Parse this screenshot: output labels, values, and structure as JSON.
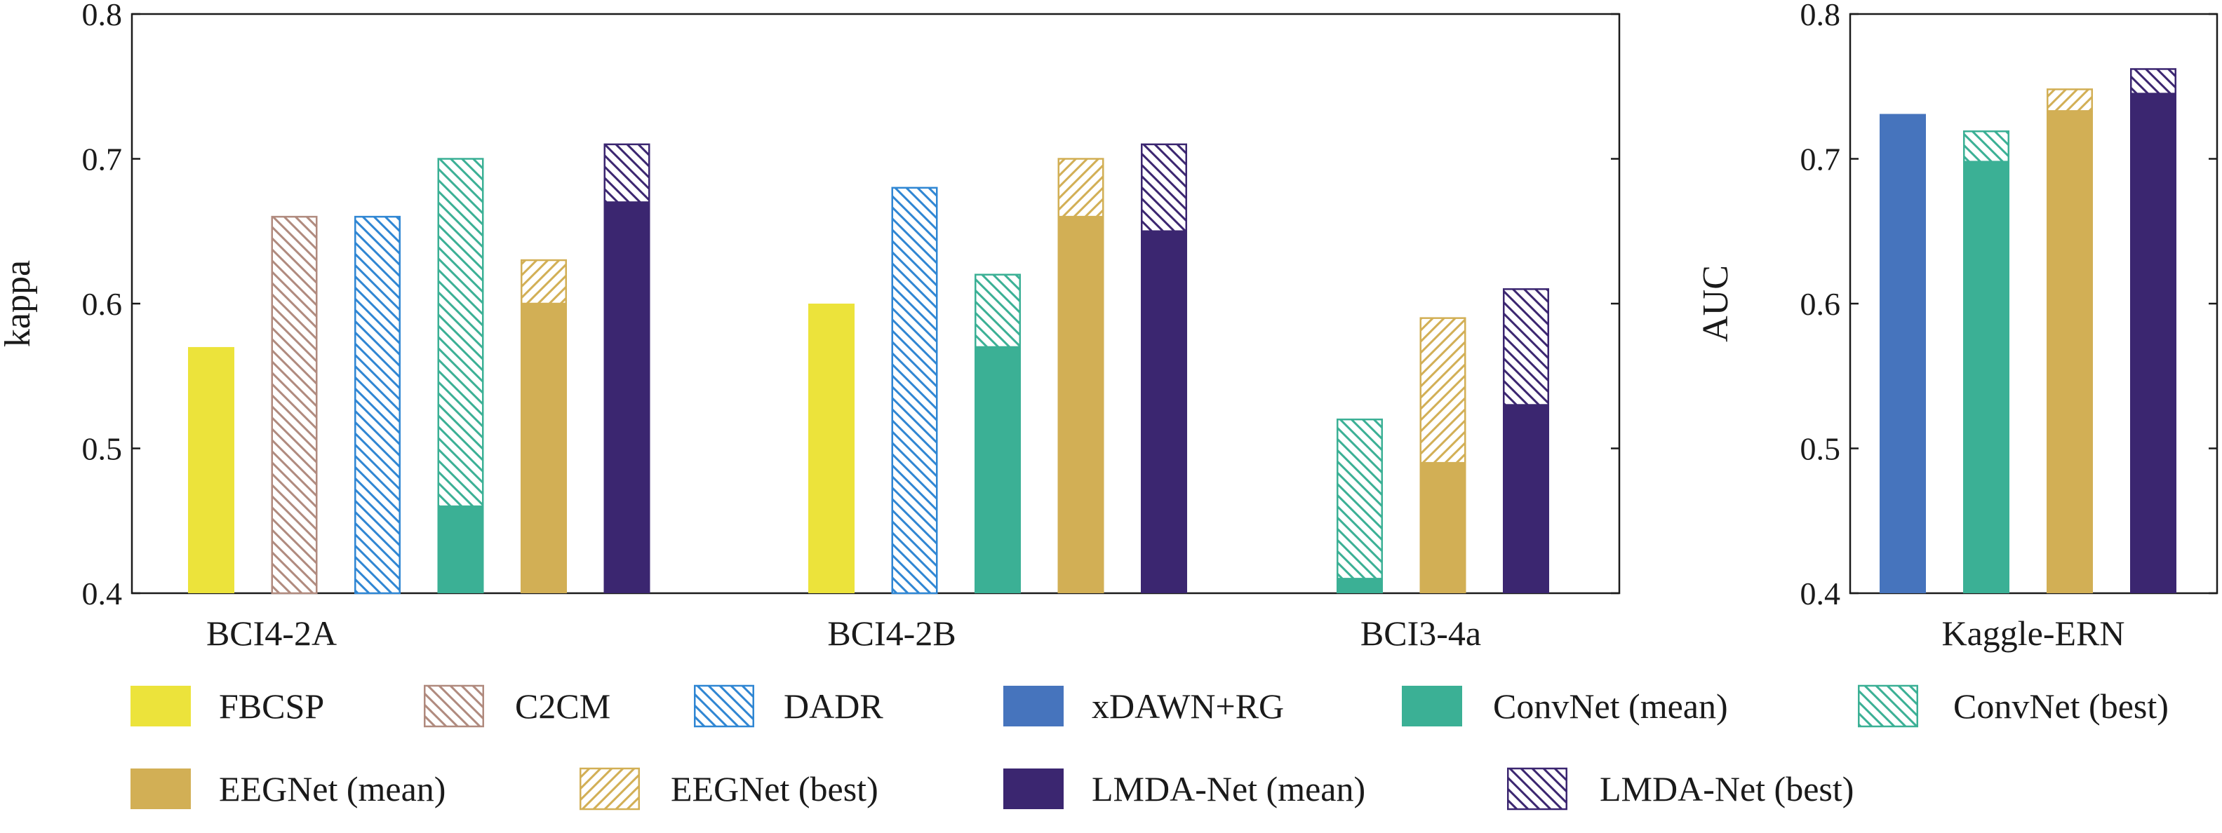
{
  "chart_data": [
    {
      "type": "bar",
      "chart": "left",
      "ylabel": "kappa",
      "ylim": [
        0.4,
        0.8
      ],
      "yticks": [
        "0.4",
        "0.5",
        "0.6",
        "0.7",
        "0.8"
      ],
      "categories": [
        "BCI4-2A",
        "BCI4-2B",
        "BCI3-4a"
      ],
      "series": [
        {
          "name": "FBCSP",
          "key": "fbcsp",
          "mean": [
            0.57,
            0.6,
            null
          ],
          "best": [
            null,
            null,
            null
          ]
        },
        {
          "name": "C2CM",
          "key": "c2cm",
          "mean": [
            null,
            null,
            null
          ],
          "best": [
            0.66,
            null,
            null
          ]
        },
        {
          "name": "DADR",
          "key": "dadr",
          "mean": [
            null,
            null,
            null
          ],
          "best": [
            0.66,
            0.68,
            null
          ]
        },
        {
          "name": "ConvNet",
          "key": "convnet",
          "mean": [
            0.46,
            0.57,
            0.41
          ],
          "best": [
            0.7,
            0.62,
            0.52
          ]
        },
        {
          "name": "EEGNet",
          "key": "eegnet",
          "mean": [
            0.6,
            0.66,
            0.49
          ],
          "best": [
            0.63,
            0.7,
            0.59
          ]
        },
        {
          "name": "LMDA-Net",
          "key": "lmda",
          "mean": [
            0.67,
            0.65,
            0.53
          ],
          "best": [
            0.71,
            0.71,
            0.61
          ]
        }
      ]
    },
    {
      "type": "bar",
      "chart": "right",
      "ylabel": "AUC",
      "ylim": [
        0.4,
        0.8
      ],
      "yticks": [
        "0.4",
        "0.5",
        "0.6",
        "0.7",
        "0.8"
      ],
      "categories": [
        "Kaggle-ERN"
      ],
      "series": [
        {
          "name": "xDAWN+RG",
          "key": "xdawn",
          "mean": [
            0.731
          ],
          "best": [
            null
          ]
        },
        {
          "name": "ConvNet",
          "key": "convnet",
          "mean": [
            0.698
          ],
          "best": [
            0.719
          ]
        },
        {
          "name": "EEGNet",
          "key": "eegnet",
          "mean": [
            0.733
          ],
          "best": [
            0.748
          ]
        },
        {
          "name": "LMDA-Net",
          "key": "lmda",
          "mean": [
            0.745
          ],
          "best": [
            0.762
          ]
        }
      ]
    }
  ],
  "legend": [
    {
      "label": "FBCSP",
      "color_key": "fbcsp",
      "hatched": false
    },
    {
      "label": "C2CM",
      "color_key": "c2cm",
      "hatched": true
    },
    {
      "label": "DADR",
      "color_key": "dadr",
      "hatched": true
    },
    {
      "label": "xDAWN+RG",
      "color_key": "xdawn",
      "hatched": false
    },
    {
      "label": "ConvNet (mean)",
      "color_key": "convnet",
      "hatched": false
    },
    {
      "label": "ConvNet (best)",
      "color_key": "convnet",
      "hatched": true
    },
    {
      "label": "EEGNet (mean)",
      "color_key": "eegnet",
      "hatched": false
    },
    {
      "label": "EEGNet (best)",
      "color_key": "eegnet",
      "hatched": true
    },
    {
      "label": "LMDA-Net (mean)",
      "color_key": "lmda",
      "hatched": false
    },
    {
      "label": "LMDA-Net (best)",
      "color_key": "lmda",
      "hatched": true
    }
  ],
  "colors": {
    "fbcsp": "#ece33b",
    "c2cm": "#b08a7e",
    "dadr": "#2f86d3",
    "xdawn": "#4674bd",
    "convnet": "#3bb095",
    "eegnet": "#d2af55",
    "lmda": "#3b2670",
    "axis": "#1a1a1a"
  }
}
